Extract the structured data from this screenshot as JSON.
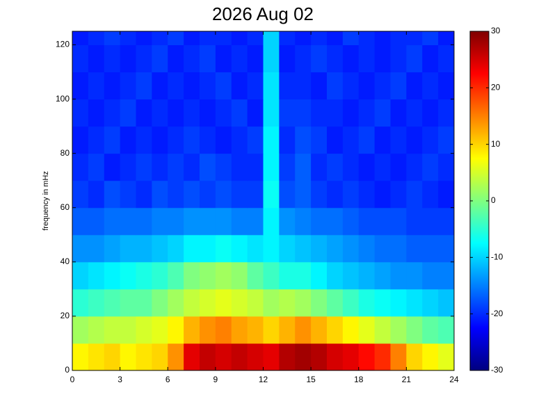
{
  "chart_data": {
    "type": "heatmap",
    "title": "2026 Aug 02",
    "y_label": "frequency in mHz",
    "colormap": "jet",
    "x": [
      0.5,
      1.5,
      2.5,
      3.5,
      4.5,
      5.5,
      6.5,
      7.5,
      8.5,
      9.5,
      10.5,
      11.5,
      12.5,
      13.5,
      14.5,
      15.5,
      16.5,
      17.5,
      18.5,
      19.5,
      20.5,
      21.5,
      22.5,
      23.5
    ],
    "y": [
      5,
      15,
      25,
      35,
      45,
      55,
      65,
      75,
      85,
      95,
      105,
      115,
      125
    ],
    "z": [
      [
        8,
        9,
        10,
        8,
        9,
        10,
        14,
        24,
        26,
        25,
        26,
        25,
        24,
        27,
        28,
        27,
        25,
        24,
        22,
        20,
        15,
        10,
        8,
        6
      ],
      [
        2,
        3,
        4,
        4,
        5,
        6,
        8,
        12,
        14,
        15,
        13,
        12,
        10,
        12,
        14,
        12,
        10,
        8,
        6,
        4,
        2,
        0,
        -2,
        -3
      ],
      [
        -5,
        -4,
        -3,
        -2,
        -2,
        0,
        2,
        4,
        5,
        6,
        5,
        4,
        2,
        3,
        2,
        0,
        -2,
        -4,
        -6,
        -7,
        -8,
        -9,
        -10,
        -11
      ],
      [
        -10,
        -9,
        -8,
        -7,
        -6,
        -5,
        -3,
        0,
        1,
        2,
        1,
        -2,
        -4,
        -6,
        -6,
        -8,
        -10,
        -11,
        -12,
        -13,
        -14,
        -14,
        -15,
        -15
      ],
      [
        -14,
        -14,
        -13,
        -12,
        -12,
        -11,
        -10,
        -8,
        -8,
        -7,
        -8,
        -9,
        -8,
        -10,
        -11,
        -12,
        -13,
        -14,
        -15,
        -16,
        -16,
        -17,
        -17,
        -17
      ],
      [
        -17,
        -17,
        -16,
        -16,
        -16,
        -15,
        -15,
        -14,
        -14,
        -14,
        -15,
        -15,
        -8,
        -14,
        -15,
        -16,
        -16,
        -17,
        -18,
        -18,
        -18,
        -19,
        -19,
        -19
      ],
      [
        -19,
        -20,
        -18,
        -19,
        -20,
        -18,
        -19,
        -18,
        -19,
        -18,
        -19,
        -19,
        -7,
        -18,
        -17,
        -19,
        -20,
        -19,
        -20,
        -21,
        -20,
        -19,
        -20,
        -21
      ],
      [
        -20,
        -19,
        -21,
        -20,
        -19,
        -20,
        -19,
        -20,
        -18,
        -19,
        -20,
        -20,
        -8,
        -19,
        -17,
        -20,
        -19,
        -20,
        -21,
        -20,
        -21,
        -20,
        -19,
        -20
      ],
      [
        -21,
        -20,
        -19,
        -21,
        -20,
        -21,
        -20,
        -19,
        -20,
        -21,
        -20,
        -19,
        -8,
        -20,
        -18,
        -19,
        -21,
        -20,
        -19,
        -21,
        -20,
        -21,
        -20,
        -19
      ],
      [
        -20,
        -21,
        -20,
        -19,
        -21,
        -20,
        -21,
        -20,
        -21,
        -20,
        -19,
        -21,
        -9,
        -19,
        -19,
        -20,
        -20,
        -21,
        -20,
        -19,
        -21,
        -20,
        -21,
        -20
      ],
      [
        -21,
        -20,
        -21,
        -20,
        -19,
        -21,
        -20,
        -21,
        -20,
        -19,
        -21,
        -20,
        -9,
        -20,
        -20,
        -21,
        -19,
        -20,
        -21,
        -20,
        -19,
        -21,
        -20,
        -21
      ],
      [
        -20,
        -21,
        -20,
        -21,
        -20,
        -19,
        -21,
        -20,
        -19,
        -21,
        -20,
        -21,
        -10,
        -21,
        -20,
        -19,
        -20,
        -21,
        -20,
        -21,
        -20,
        -19,
        -21,
        -20
      ],
      [
        -21,
        -20,
        -19,
        -20,
        -21,
        -20,
        -19,
        -21,
        -20,
        -20,
        -21,
        -20,
        -10,
        -20,
        -21,
        -20,
        -21,
        -19,
        -20,
        -21,
        -20,
        -20,
        -19,
        -21
      ]
    ],
    "xlim": [
      0,
      24
    ],
    "xticks": [
      0,
      3,
      6,
      9,
      12,
      15,
      18,
      21,
      24
    ],
    "ylim": [
      0,
      125
    ],
    "yticks": [
      0,
      20,
      40,
      60,
      80,
      100,
      120
    ],
    "clim": [
      -30,
      30
    ],
    "cticks": [
      -30,
      -20,
      -10,
      0,
      10,
      20,
      30
    ]
  }
}
